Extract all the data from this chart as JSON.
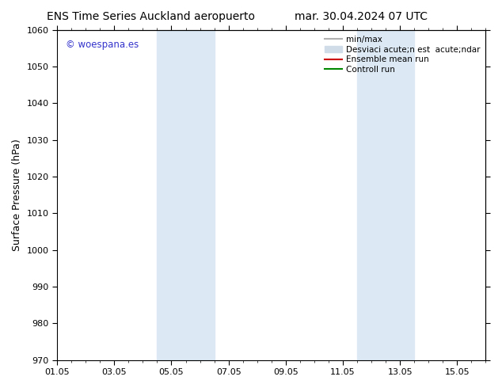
{
  "title_left": "ENS Time Series Auckland aeropuerto",
  "title_right": "mar. 30.04.2024 07 UTC",
  "ylabel": "Surface Pressure (hPa)",
  "ylim": [
    970,
    1060
  ],
  "yticks": [
    970,
    980,
    990,
    1000,
    1010,
    1020,
    1030,
    1040,
    1050,
    1060
  ],
  "xtick_labels": [
    "01.05",
    "03.05",
    "05.05",
    "07.05",
    "09.05",
    "11.05",
    "13.05",
    "15.05"
  ],
  "xtick_positions": [
    0,
    2,
    4,
    6,
    8,
    10,
    12,
    14
  ],
  "xlim": [
    0,
    15
  ],
  "shaded_regions": [
    {
      "xstart": 3.5,
      "xend": 5.5,
      "color": "#dce9f5"
    },
    {
      "xstart": 10.5,
      "xend": 12.5,
      "color": "#dce9f5"
    }
  ],
  "watermark_text": "© woespana.es",
  "watermark_color": "#3333cc",
  "legend_entries": [
    {
      "label": "min/max",
      "color": "#b0b0b0",
      "lw": 1.5,
      "type": "line"
    },
    {
      "label": "Desviaci acute;n est  acute;ndar",
      "color": "#d0dce8",
      "lw": 8,
      "type": "patch"
    },
    {
      "label": "Ensemble mean run",
      "color": "#cc0000",
      "lw": 1.5,
      "type": "line"
    },
    {
      "label": "Controll run",
      "color": "#008800",
      "lw": 1.5,
      "type": "line"
    }
  ],
  "bg_color": "#ffffff",
  "title_fontsize": 10,
  "axis_fontsize": 9,
  "tick_fontsize": 8,
  "legend_fontsize": 7.5
}
